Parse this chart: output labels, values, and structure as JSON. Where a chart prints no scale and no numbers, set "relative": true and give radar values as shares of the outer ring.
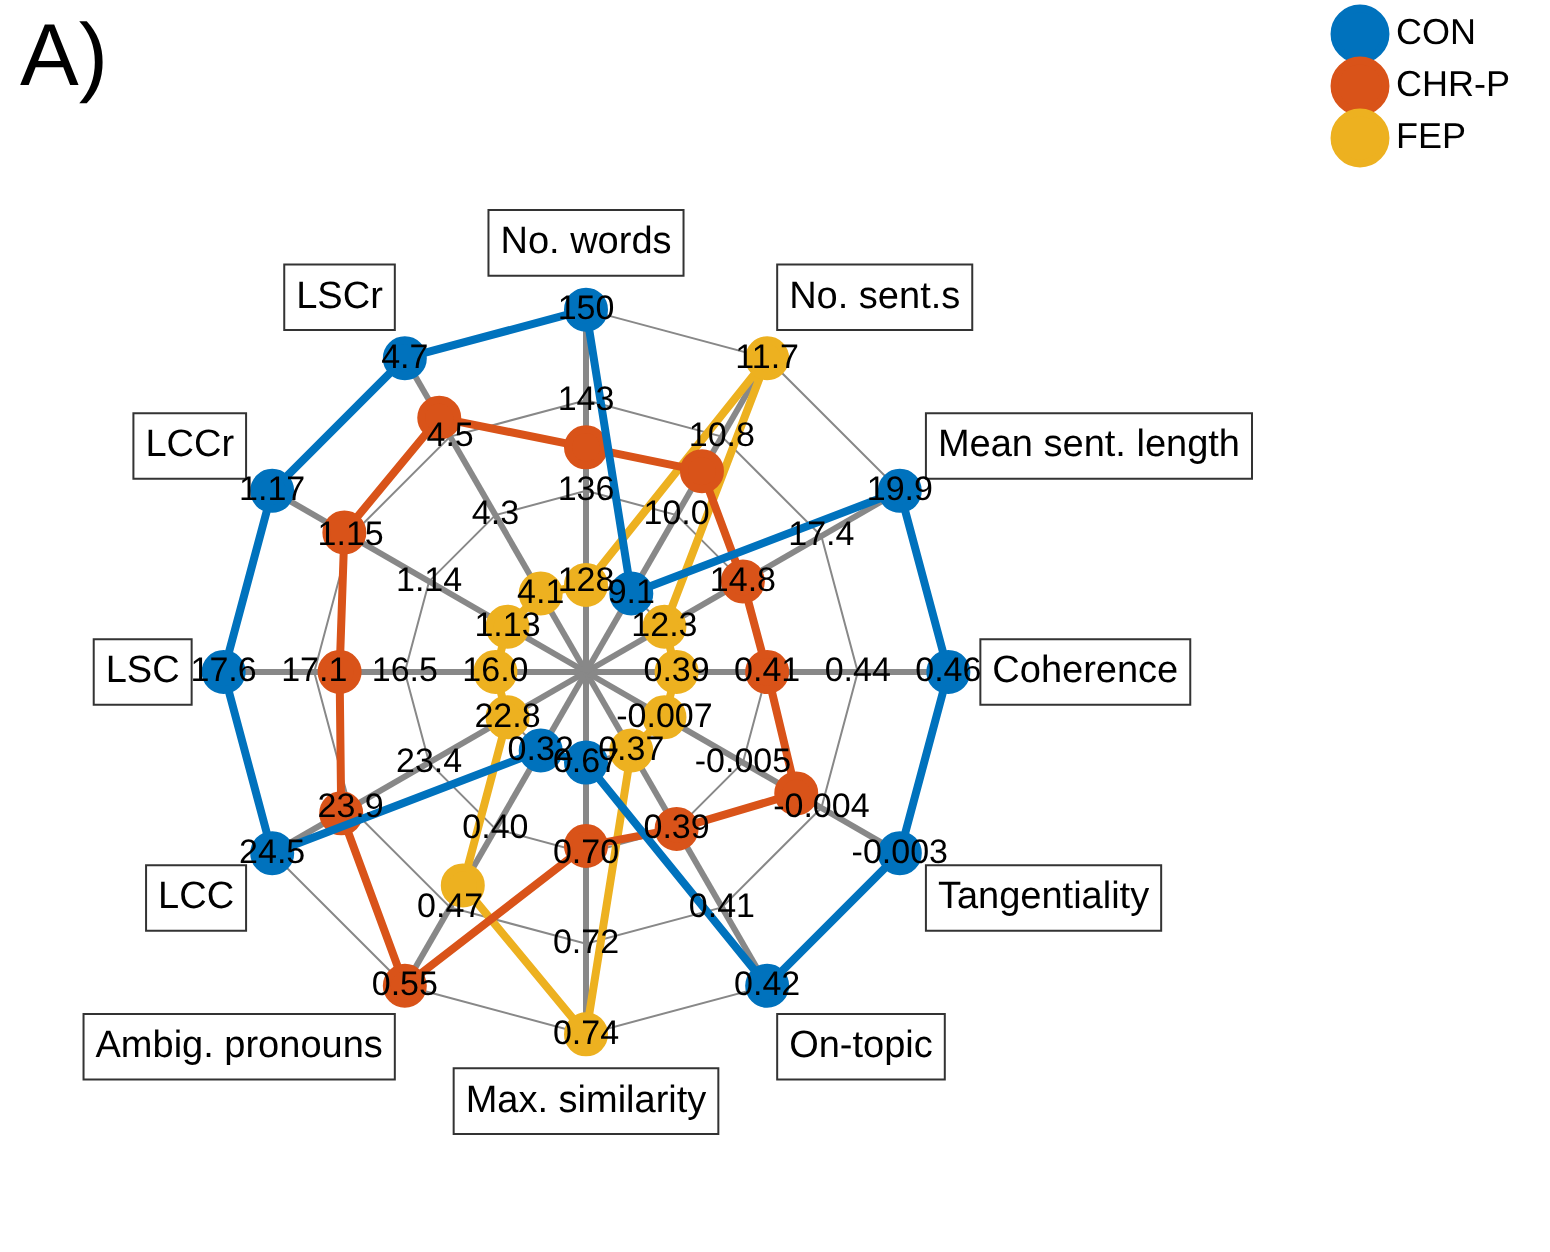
{
  "chart_data": {
    "type": "radar",
    "title": "A)",
    "relative": true,
    "legend": "top right",
    "marker": "circle",
    "line_style": "solid",
    "grid": true,
    "categories": [
      "No. words",
      "No. sent.s",
      "Mean sent. length",
      "Coherence",
      "Tangentiality",
      "On-topic",
      "Max. similarity",
      "Ambig. pronouns",
      "LCC",
      "LSC",
      "LCCr",
      "LSCr"
    ],
    "series": [
      {
        "name": "CON",
        "color": "#0072bd",
        "values": [
          1,
          0.25,
          1,
          1,
          1,
          1,
          0.25,
          0.25,
          1,
          1,
          1,
          1
        ]
      },
      {
        "name": "CHR-P",
        "color": "#d95319",
        "values": [
          0.62,
          0.64,
          0.5,
          0.5,
          0.67,
          0.5,
          0.48,
          1,
          0.78,
          0.68,
          0.77,
          0.81
        ]
      },
      {
        "name": "FEP",
        "color": "#edb120",
        "values": [
          0.24,
          1,
          0.25,
          0.25,
          0.25,
          0.25,
          1,
          0.68,
          0.25,
          0.25,
          0.25,
          0.25
        ]
      }
    ],
    "annotations": [
      "128",
      "136",
      "143",
      "150",
      "9.1",
      "10.0",
      "10.8",
      "11.7",
      "12.3",
      "14.8",
      "17.4",
      "19.9",
      "0.39",
      "0.41",
      "0.44",
      "0.46",
      "-0.007",
      "-0.005",
      "-0.004",
      "-0.003",
      "0.37",
      "0.39",
      "0.41",
      "0.42",
      "0.67",
      "0.70",
      "0.72",
      "0.74",
      "0.32",
      "0.40",
      "0.47",
      "0.55",
      "22.8",
      "23.4",
      "23.9",
      "24.5",
      "16.0",
      "16.5",
      "17.1",
      "17.6",
      "1.13",
      "1.14",
      "1.15",
      "1.17",
      "4.1",
      "4.3",
      "4.5",
      "4.7"
    ]
  }
}
